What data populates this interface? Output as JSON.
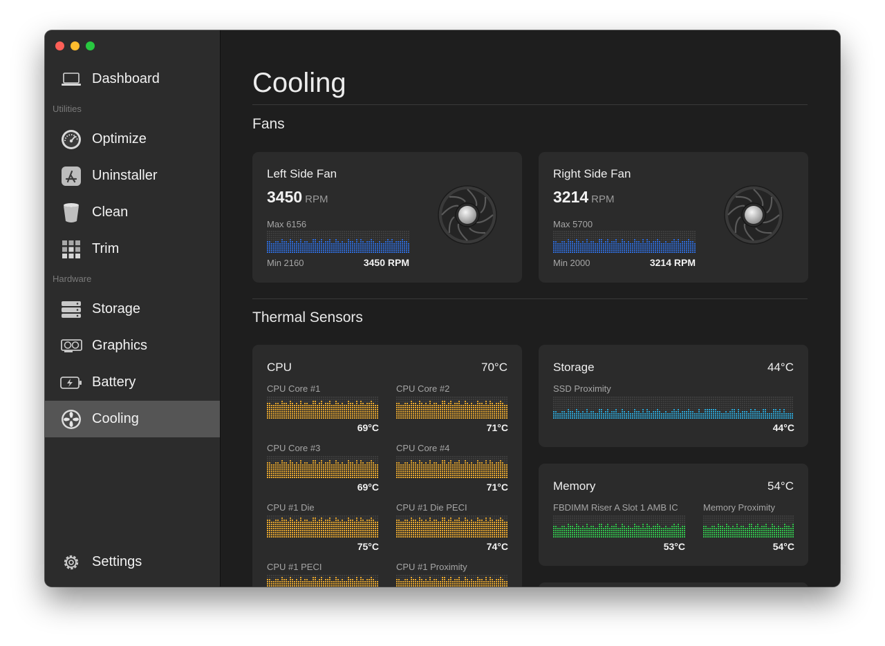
{
  "window": {
    "controls": [
      "close",
      "minimize",
      "zoom"
    ]
  },
  "sidebar": {
    "top_item": {
      "label": "Dashboard",
      "icon": "laptop-icon"
    },
    "sections": [
      {
        "label": "Utilities"
      },
      {
        "label": "Hardware"
      }
    ],
    "items": [
      {
        "label": "Optimize",
        "icon": "gauge-icon"
      },
      {
        "label": "Uninstaller",
        "icon": "app-store-icon"
      },
      {
        "label": "Clean",
        "icon": "trash-icon"
      },
      {
        "label": "Trim",
        "icon": "grid-icon"
      },
      {
        "label": "Storage",
        "icon": "drive-stack-icon"
      },
      {
        "label": "Graphics",
        "icon": "graphics-card-icon"
      },
      {
        "label": "Battery",
        "icon": "battery-icon"
      },
      {
        "label": "Cooling",
        "icon": "fan-icon",
        "active": true
      }
    ],
    "settings": {
      "label": "Settings",
      "icon": "gear-icon"
    }
  },
  "main": {
    "title": "Cooling",
    "fans_title": "Fans",
    "fans": [
      {
        "name": "Left Side Fan",
        "rpm": "3450",
        "unit": "RPM",
        "max": "Max 6156",
        "min": "Min 2160",
        "current": "3450 RPM",
        "fraction": 0.58,
        "color": "#2f6fe0"
      },
      {
        "name": "Right Side Fan",
        "rpm": "3214",
        "unit": "RPM",
        "max": "Max 5700",
        "min": "Min 2000",
        "current": "3214 RPM",
        "fraction": 0.55,
        "color": "#2f6fe0"
      }
    ],
    "thermal_title": "Thermal Sensors",
    "cpu": {
      "name": "CPU",
      "temp": "70°C",
      "color": "#e8a830",
      "sensors": [
        {
          "name": "CPU Core #1",
          "value": "69°C",
          "fraction": 0.75
        },
        {
          "name": "CPU Core #2",
          "value": "71°C",
          "fraction": 0.75
        },
        {
          "name": "CPU Core #3",
          "value": "69°C",
          "fraction": 0.72
        },
        {
          "name": "CPU Core #4",
          "value": "71°C",
          "fraction": 0.73
        },
        {
          "name": "CPU #1 Die",
          "value": "75°C",
          "fraction": 0.85
        },
        {
          "name": "CPU #1 Die PECI",
          "value": "74°C",
          "fraction": 0.85
        },
        {
          "name": "CPU #1 PECI",
          "value": "",
          "fraction": 0.8
        },
        {
          "name": "CPU #1 Proximity",
          "value": "",
          "fraction": 0.8
        }
      ]
    },
    "storage": {
      "name": "Storage",
      "temp": "44°C",
      "color": "#2ea8d8",
      "sensors": [
        {
          "name": "SSD Proximity",
          "value": "44°C",
          "fraction": 0.38
        }
      ]
    },
    "memory": {
      "name": "Memory",
      "temp": "54°C",
      "color": "#33c24d",
      "sensors": [
        {
          "name": "FBDIMM Riser A Slot 1 AMB IC",
          "value": "53°C",
          "fraction": 0.5
        },
        {
          "name": "Memory Proximity",
          "value": "54°C",
          "fraction": 0.5
        }
      ]
    }
  }
}
